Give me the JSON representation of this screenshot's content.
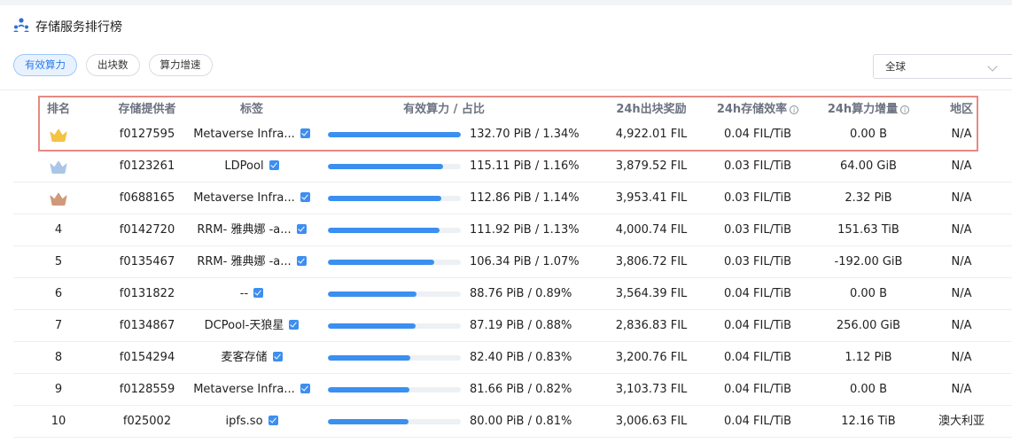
{
  "header": {
    "title": "存储服务排行榜",
    "icon": "people-ranking-icon"
  },
  "tabs": [
    {
      "label": "有效算力",
      "active": true
    },
    {
      "label": "出块数",
      "active": false
    },
    {
      "label": "算力增速",
      "active": false
    }
  ],
  "region_select": {
    "value": "全球"
  },
  "columns": {
    "rank": "排名",
    "provider": "存储提供者",
    "tag": "标签",
    "power": "有效算力 / 占比",
    "reward": "24h出块奖励",
    "efficiency": "24h存储效率",
    "increase": "24h算力增量",
    "region": "地区"
  },
  "colors": {
    "accent": "#3b8ff0",
    "highlight_border": "#e58a83",
    "gold": "#f5c242",
    "silver": "#a9c6e8",
    "bronze": "#d09a7a"
  },
  "rows": [
    {
      "rank": "",
      "medal": "gold",
      "provider": "f0127595",
      "tag": "Metaverse Infra...",
      "verified": true,
      "share_pct": 1.34,
      "power": "132.70 PiB / 1.34%",
      "reward": "4,922.01 FIL",
      "efficiency": "0.04 FIL/TiB",
      "increase": "0.00 B",
      "region": "N/A"
    },
    {
      "rank": "",
      "medal": "silver",
      "provider": "f0123261",
      "tag": "LDPool",
      "verified": true,
      "share_pct": 1.16,
      "power": "115.11 PiB / 1.16%",
      "reward": "3,879.52 FIL",
      "efficiency": "0.03 FIL/TiB",
      "increase": "64.00 GiB",
      "region": "N/A"
    },
    {
      "rank": "",
      "medal": "bronze",
      "provider": "f0688165",
      "tag": "Metaverse Infra...",
      "verified": true,
      "share_pct": 1.14,
      "power": "112.86 PiB / 1.14%",
      "reward": "3,953.41 FIL",
      "efficiency": "0.03 FIL/TiB",
      "increase": "2.32 PiB",
      "region": "N/A"
    },
    {
      "rank": "4",
      "medal": "",
      "provider": "f0142720",
      "tag": "RRM- 雅典娜 -a...",
      "verified": true,
      "share_pct": 1.13,
      "power": "111.92 PiB / 1.13%",
      "reward": "4,000.74 FIL",
      "efficiency": "0.03 FIL/TiB",
      "increase": "151.63 TiB",
      "region": "N/A"
    },
    {
      "rank": "5",
      "medal": "",
      "provider": "f0135467",
      "tag": "RRM- 雅典娜 -a...",
      "verified": true,
      "share_pct": 1.07,
      "power": "106.34 PiB / 1.07%",
      "reward": "3,806.72 FIL",
      "efficiency": "0.03 FIL/TiB",
      "increase": "-192.00 GiB",
      "region": "N/A"
    },
    {
      "rank": "6",
      "medal": "",
      "provider": "f0131822",
      "tag": "--",
      "verified": true,
      "share_pct": 0.89,
      "power": "88.76 PiB / 0.89%",
      "reward": "3,564.39 FIL",
      "efficiency": "0.04 FIL/TiB",
      "increase": "0.00 B",
      "region": "N/A"
    },
    {
      "rank": "7",
      "medal": "",
      "provider": "f0134867",
      "tag": "DCPool-天狼星",
      "verified": true,
      "share_pct": 0.88,
      "power": "87.19 PiB / 0.88%",
      "reward": "2,836.83 FIL",
      "efficiency": "0.04 FIL/TiB",
      "increase": "256.00 GiB",
      "region": "N/A"
    },
    {
      "rank": "8",
      "medal": "",
      "provider": "f0154294",
      "tag": "麦客存储",
      "verified": true,
      "share_pct": 0.83,
      "power": "82.40 PiB / 0.83%",
      "reward": "3,200.76 FIL",
      "efficiency": "0.04 FIL/TiB",
      "increase": "1.12 PiB",
      "region": "N/A"
    },
    {
      "rank": "9",
      "medal": "",
      "provider": "f0128559",
      "tag": "Metaverse Infra...",
      "verified": true,
      "share_pct": 0.82,
      "power": "81.66 PiB / 0.82%",
      "reward": "3,103.73 FIL",
      "efficiency": "0.04 FIL/TiB",
      "increase": "0.00 B",
      "region": "N/A"
    },
    {
      "rank": "10",
      "medal": "",
      "provider": "f025002",
      "tag": "ipfs.so",
      "verified": true,
      "share_pct": 0.81,
      "power": "80.00 PiB / 0.81%",
      "reward": "3,006.63 FIL",
      "efficiency": "0.04 FIL/TiB",
      "increase": "12.16 TiB",
      "region": "澳大利亚"
    }
  ]
}
